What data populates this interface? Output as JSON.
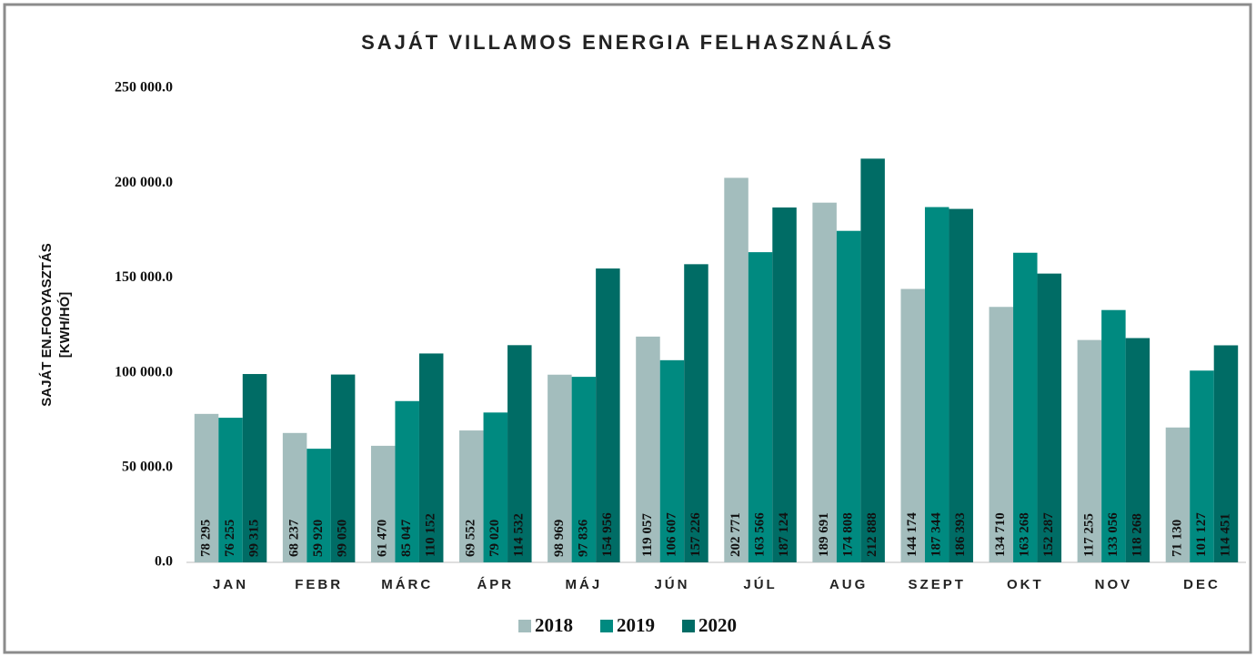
{
  "chart_data": {
    "type": "bar",
    "title": "SAJÁT VILLAMOS ENERGIA FELHASZNÁLÁS",
    "y_label": [
      "SAJÁT EN.FOGYASZTÁS",
      "[KWH/HÓ]"
    ],
    "categories": [
      "JAN",
      "FEBR",
      "MÁRC",
      "ÁPR",
      "MÁJ",
      "JÚN",
      "JÚL",
      "AUG",
      "SZEPT",
      "OKT",
      "NOV",
      "DEC"
    ],
    "series": [
      {
        "name": "2018",
        "color": "#a3bdbd",
        "values": [
          78295,
          68237,
          61470,
          69552,
          98969,
          119057,
          202771,
          189691,
          144174,
          134710,
          117255,
          71130
        ],
        "value_labels": [
          "78 295",
          "68 237",
          "61 470",
          "69 552",
          "98 969",
          "119 057",
          "202 771",
          "189 691",
          "144 174",
          "134 710",
          "117 255",
          "71 130"
        ]
      },
      {
        "name": "2019",
        "color": "#008a80",
        "values": [
          76255,
          59920,
          85047,
          79020,
          97836,
          106607,
          163566,
          174808,
          187344,
          163268,
          133056,
          101127
        ],
        "value_labels": [
          "76 255",
          "59 920",
          "85 047",
          "79 020",
          "97 836",
          "106 607",
          "163 566",
          "174 808",
          "187 344",
          "163 268",
          "133 056",
          "101 127"
        ]
      },
      {
        "name": "2020",
        "color": "#006c65",
        "values": [
          99315,
          99050,
          110152,
          114532,
          154956,
          157226,
          187124,
          212888,
          186393,
          152287,
          118268,
          114451
        ],
        "value_labels": [
          "99 315",
          "99 050",
          "110 152",
          "114 532",
          "154 956",
          "157 226",
          "187 124",
          "212 888",
          "186 393",
          "152 287",
          "118 268",
          "114 451"
        ]
      }
    ],
    "ylim": [
      0,
      250000
    ],
    "yticks": [
      {
        "value": 0,
        "label": "0.0"
      },
      {
        "value": 50000,
        "label": "50 000.0"
      },
      {
        "value": 100000,
        "label": "100 000.0"
      },
      {
        "value": 150000,
        "label": "150 000.0"
      },
      {
        "value": 200000,
        "label": "200 000.0"
      },
      {
        "value": 250000,
        "label": "250 000.0"
      }
    ],
    "grid": false,
    "legend": "bottom"
  }
}
